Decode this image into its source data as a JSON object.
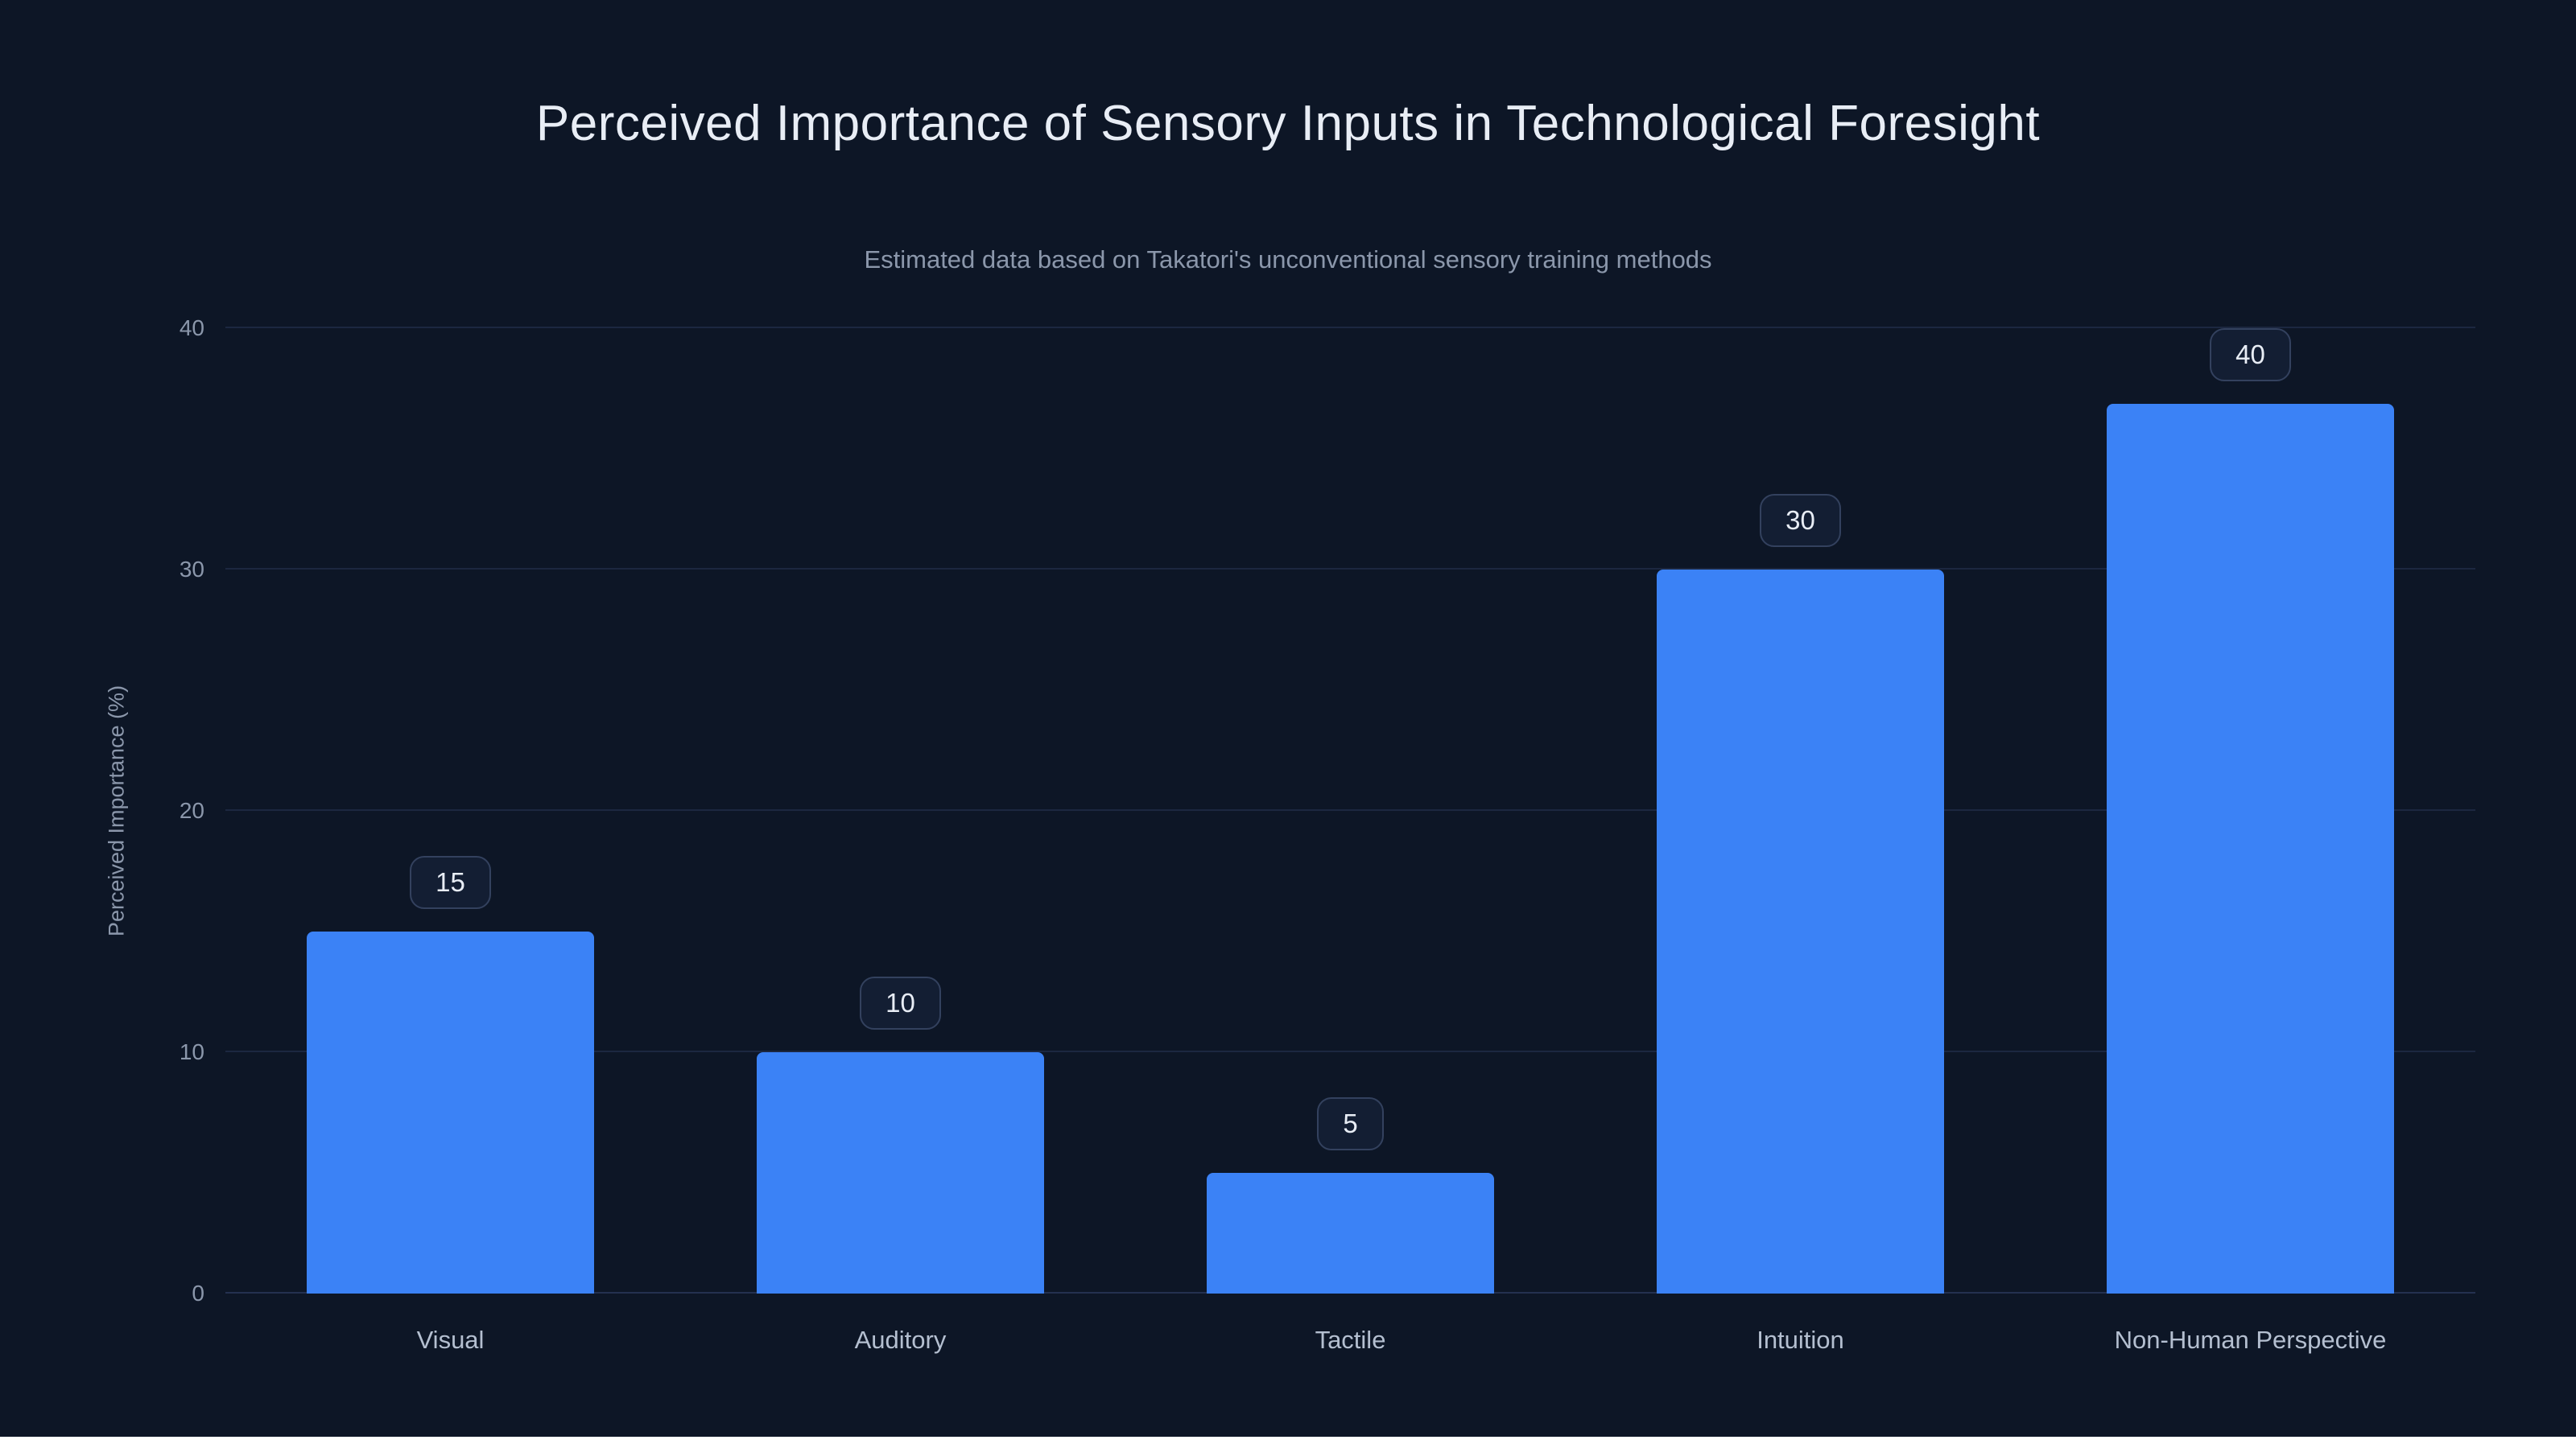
{
  "chart_data": {
    "type": "bar",
    "title": "Perceived Importance of Sensory Inputs in Technological Foresight",
    "subtitle": "Estimated data based on Takatori's unconventional sensory training methods",
    "categories": [
      "Visual",
      "Auditory",
      "Tactile",
      "Intuition",
      "Non-Human Perspective"
    ],
    "values": [
      15,
      10,
      5,
      30,
      40
    ],
    "data_labels": [
      "15",
      "10",
      "5",
      "30",
      "40"
    ],
    "xlabel": "",
    "ylabel": "Perceived Importance (%)",
    "ylim": [
      0,
      40
    ],
    "yticks": [
      0,
      10,
      20,
      30,
      40
    ],
    "grid": true,
    "legend": false,
    "colors": {
      "background": "#0d1626",
      "bar": "#3b82f6",
      "grid": "#1c2740",
      "grid_baseline": "#243150",
      "text": "#e8edf5",
      "muted": "#8b97ab",
      "x_label": "#b4bfd0",
      "badge_border": "#33415e",
      "badge_background": "#131e33"
    }
  }
}
